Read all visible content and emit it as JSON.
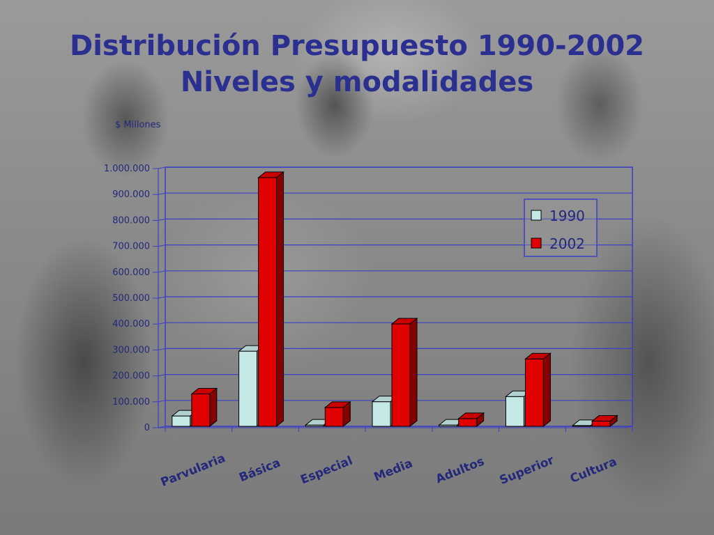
{
  "slide": {
    "title_line1": "Distribución Presupuesto 1990-2002",
    "title_line2": "Niveles y modalidades"
  },
  "chart_data": {
    "type": "bar",
    "title": "Distribución Presupuesto 1990-2002 Niveles y modalidades",
    "ylabel": "$ Millones",
    "xlabel": "",
    "ylim": [
      0,
      1000000
    ],
    "y_ticks": [
      "0",
      "100.000",
      "200.000",
      "300.000",
      "400.000",
      "500.000",
      "600.000",
      "700.000",
      "800.000",
      "900.000",
      "1.000.000"
    ],
    "categories": [
      "Parvularia",
      "Básica",
      "Especial",
      "Media",
      "Adultos",
      "Superior",
      "Cultura"
    ],
    "series": [
      {
        "name": "1990",
        "color": "#c4e8e6",
        "values": [
          40000,
          290000,
          5000,
          95000,
          5000,
          115000,
          3000
        ]
      },
      {
        "name": "2002",
        "color": "#e00000",
        "values": [
          125000,
          960000,
          73000,
          395000,
          30000,
          260000,
          20000
        ]
      }
    ],
    "grid": true,
    "legend_position": "top-right"
  }
}
